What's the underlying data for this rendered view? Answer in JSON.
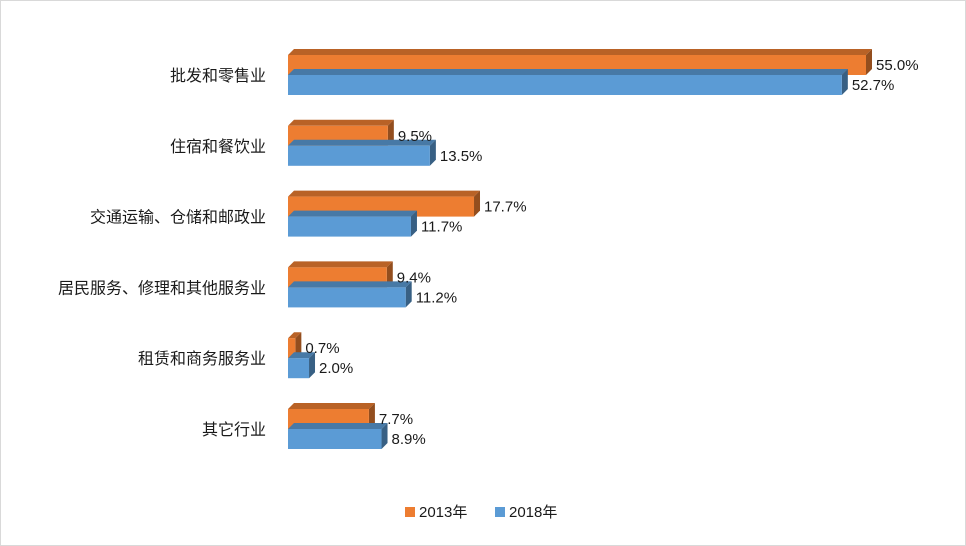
{
  "chart_data": {
    "type": "bar",
    "orientation": "horizontal",
    "style": "3d",
    "categories": [
      "批发和零售业",
      "住宿和餐饮业",
      "交通运输、仓储和邮政业",
      "居民服务、修理和其他服务业",
      "租赁和商务服务业",
      "其它行业"
    ],
    "series": [
      {
        "name": "2013年",
        "color": "#ed7d31",
        "values": [
          55.0,
          9.5,
          17.7,
          9.4,
          0.7,
          7.7
        ],
        "labels": [
          "55.0%",
          "9.5%",
          "17.7%",
          "9.4%",
          "0.7%",
          "7.7%"
        ]
      },
      {
        "name": "2018年",
        "color": "#5b9bd5",
        "values": [
          52.7,
          13.5,
          11.7,
          11.2,
          2.0,
          8.9
        ],
        "labels": [
          "52.7%",
          "13.5%",
          "11.7%",
          "11.2%",
          "2.0%",
          "8.9%"
        ]
      }
    ],
    "value_unit": "%",
    "xlim": [
      0,
      55
    ],
    "grid": false,
    "legend_position": "bottom"
  }
}
